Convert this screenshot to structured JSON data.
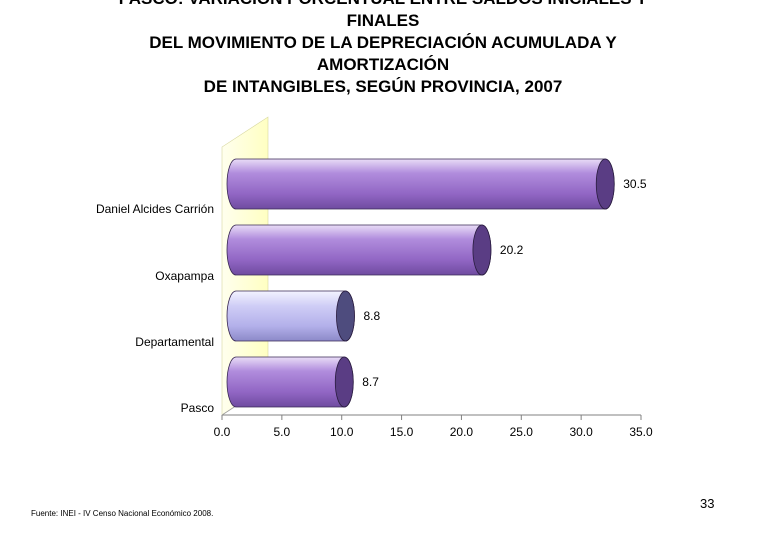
{
  "title_lines": [
    "PASCO: VARIACIÓN PORCENTUAL ENTRE SALDOS INICIALES Y",
    "FINALES",
    "DEL MOVIMIENTO DE LA DEPRECIACIÓN ACUMULADA Y",
    "AMORTIZACIÓN",
    "DE INTANGIBLES, SEGÚN PROVINCIA, 2007"
  ],
  "source": "Fuente: INEI - IV Censo Nacional Económico 2008.",
  "page_number": "33",
  "colors": {
    "bar_default": "#9b72c8",
    "bar_default_dark": "#5a3d84",
    "bar_highlight": "#b9b7ee",
    "bar_highlight_dark": "#4e4c7e",
    "wall": "#ffffcc"
  },
  "chart_data": {
    "type": "bar",
    "orientation": "horizontal",
    "style": "3d-cylinder",
    "categories": [
      "Daniel Alcides Carrión",
      "Oxapampa",
      "Departamental",
      "Pasco"
    ],
    "values": [
      30.5,
      20.2,
      8.8,
      8.7
    ],
    "value_labels": [
      "30.5",
      "20.2",
      "8.8",
      "8.7"
    ],
    "highlight_category": "Departamental",
    "xlim": [
      0,
      35
    ],
    "x_ticks": [
      "0.0",
      "5.0",
      "10.0",
      "15.0",
      "20.0",
      "25.0",
      "30.0",
      "35.0"
    ],
    "grid": false,
    "legend": "none"
  }
}
